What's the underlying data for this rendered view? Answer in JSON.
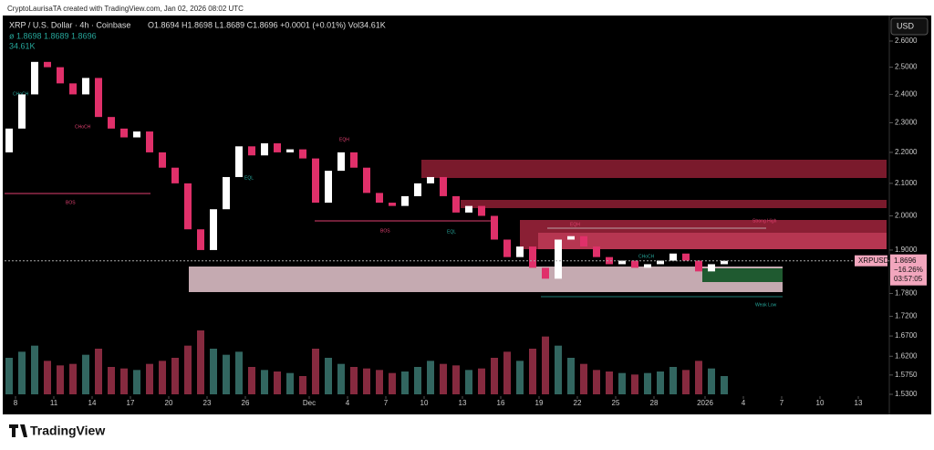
{
  "header": {
    "credit": "CryptoLaurisaTA created with TradingView.com, Jan 02, 2026 08:02 UTC",
    "symbol": "XRP / U.S. Dollar · 4h · Coinbase",
    "ohlc": "O1.8694 H1.8698 L1.8689 C1.8696 +0.0001 (+0.01%) Vol34.61K",
    "indicator": "ø 1.8698 1.8689 1.8696",
    "volume": "34.61K"
  },
  "footer": {
    "brand": "TradingView"
  },
  "chart_data": {
    "type": "candlestick",
    "currency": "USD",
    "log_scale": true,
    "open": [
      2.2,
      2.28,
      2.4,
      2.52,
      2.5,
      2.44,
      2.4,
      2.46,
      2.32,
      2.28,
      2.25,
      2.27,
      2.2,
      2.15,
      2.1,
      1.96,
      1.9,
      2.02,
      2.12,
      2.22,
      2.19,
      2.23,
      2.2,
      2.21,
      2.18,
      2.04,
      2.14,
      2.2,
      2.15,
      2.07,
      2.04,
      2.03,
      2.06,
      2.1,
      2.12,
      2.06,
      2.01,
      2.03,
      2.0,
      1.93,
      1.88,
      1.91,
      1.85,
      1.82,
      1.93,
      1.94,
      1.91,
      1.88,
      1.86,
      1.87,
      1.85,
      1.86,
      1.87,
      1.89,
      1.87,
      1.84,
      1.86
    ],
    "close": [
      2.28,
      2.4,
      2.52,
      2.5,
      2.44,
      2.4,
      2.46,
      2.32,
      2.28,
      2.25,
      2.27,
      2.2,
      2.15,
      2.1,
      1.96,
      1.9,
      2.02,
      2.12,
      2.22,
      2.19,
      2.23,
      2.2,
      2.21,
      2.18,
      2.04,
      2.14,
      2.2,
      2.15,
      2.07,
      2.04,
      2.03,
      2.06,
      2.1,
      2.12,
      2.06,
      2.01,
      2.03,
      2.0,
      1.93,
      1.88,
      1.91,
      1.85,
      1.82,
      1.93,
      1.94,
      1.91,
      1.88,
      1.86,
      1.87,
      1.85,
      1.86,
      1.87,
      1.89,
      1.87,
      1.84,
      1.86,
      1.8696
    ],
    "volume": [
      120,
      140,
      160,
      110,
      95,
      100,
      130,
      150,
      90,
      85,
      80,
      100,
      110,
      120,
      160,
      210,
      150,
      130,
      140,
      90,
      80,
      75,
      70,
      60,
      150,
      120,
      100,
      90,
      85,
      80,
      70,
      75,
      90,
      110,
      100,
      95,
      80,
      85,
      120,
      140,
      110,
      150,
      190,
      160,
      120,
      100,
      80,
      75,
      70,
      65,
      70,
      75,
      90,
      80,
      110,
      85,
      60
    ],
    "volume_ylim": [
      0,
      300
    ],
    "ylim": [
      1.53,
      2.6
    ],
    "yticks": [
      {
        "value": 2.6,
        "label": "2.6000"
      },
      {
        "value": 2.5,
        "label": "2.5000"
      },
      {
        "value": 2.4,
        "label": "2.4000"
      },
      {
        "value": 2.3,
        "label": "2.3000"
      },
      {
        "value": 2.2,
        "label": "2.2000"
      },
      {
        "value": 2.1,
        "label": "2.1000"
      },
      {
        "value": 2.0,
        "label": "2.0000"
      },
      {
        "value": 1.9,
        "label": "1.9000"
      },
      {
        "value": 1.78,
        "label": "1.7800"
      },
      {
        "value": 1.72,
        "label": "1.7200"
      },
      {
        "value": 1.67,
        "label": "1.6700"
      },
      {
        "value": 1.62,
        "label": "1.6200"
      },
      {
        "value": 1.575,
        "label": "1.5750"
      },
      {
        "value": 1.53,
        "label": "1.5300"
      }
    ],
    "xticks": [
      {
        "value": 0,
        "label": "8"
      },
      {
        "value": 3,
        "label": "11"
      },
      {
        "value": 6,
        "label": "14"
      },
      {
        "value": 9,
        "label": "17"
      },
      {
        "value": 12,
        "label": "20"
      },
      {
        "value": 15,
        "label": "23"
      },
      {
        "value": 18,
        "label": "26"
      },
      {
        "value": 23,
        "label": "Dec"
      },
      {
        "value": 26,
        "label": "4"
      },
      {
        "value": 29,
        "label": "7"
      },
      {
        "value": 32,
        "label": "10"
      },
      {
        "value": 35,
        "label": "13"
      },
      {
        "value": 38,
        "label": "16"
      },
      {
        "value": 41,
        "label": "19"
      },
      {
        "value": 44,
        "label": "22"
      },
      {
        "value": 47,
        "label": "25"
      },
      {
        "value": 50,
        "label": "28"
      },
      {
        "value": 54,
        "label": "2026"
      },
      {
        "value": 57,
        "label": "4"
      },
      {
        "value": 60,
        "label": "7"
      },
      {
        "value": 63,
        "label": "10"
      },
      {
        "value": 66,
        "label": "13"
      }
    ],
    "last_price": {
      "symbol": "XRPUSD",
      "value": 1.8696,
      "label": "1.8696",
      "change": "−16.26%",
      "countdown": "03:57:05"
    },
    "up_color": "#ffffff",
    "down_color": "#e0306a",
    "volume_up_color": "#3e7f78",
    "volume_down_color": "#a8344f",
    "annotations": [
      "BOS",
      "BOS",
      "CHoCH",
      "CHoCH",
      "CHoCH",
      "EQL",
      "EQL",
      "EQH",
      "EQH",
      "Strong High",
      "Weak Low"
    ]
  }
}
